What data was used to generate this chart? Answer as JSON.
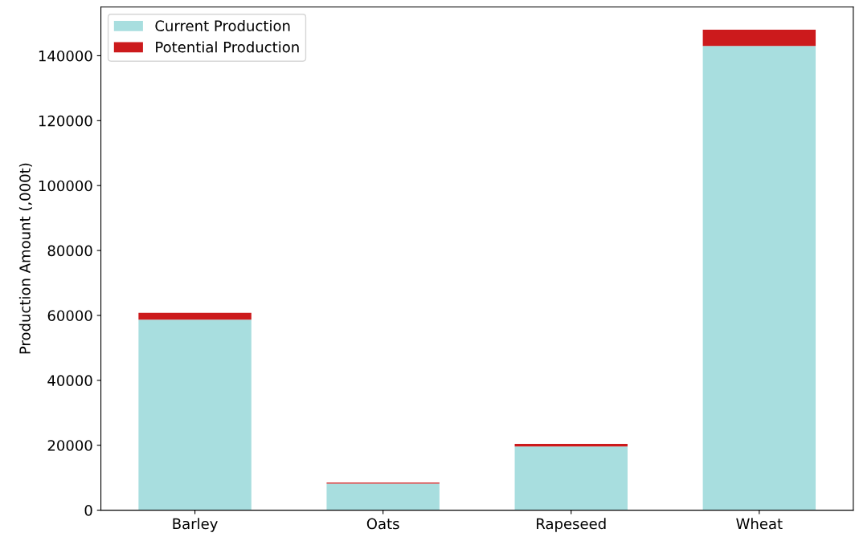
{
  "chart_data": {
    "type": "bar",
    "stacked": true,
    "ylabel": "Production Amount (,000t)",
    "categories": [
      "Barley",
      "Oats",
      "Rapeseed",
      "Wheat"
    ],
    "series": [
      {
        "name": "Current Production",
        "color": "#a8dedf",
        "values": [
          58700,
          8200,
          19600,
          143000
        ]
      },
      {
        "name": "Potential Production",
        "color": "#cc1a1c",
        "values": [
          2100,
          300,
          800,
          5000
        ]
      }
    ],
    "ylim": [
      0,
      155000
    ],
    "yticks": [
      0,
      20000,
      40000,
      60000,
      80000,
      100000,
      120000,
      140000
    ],
    "grid": false,
    "legend": "top left"
  }
}
